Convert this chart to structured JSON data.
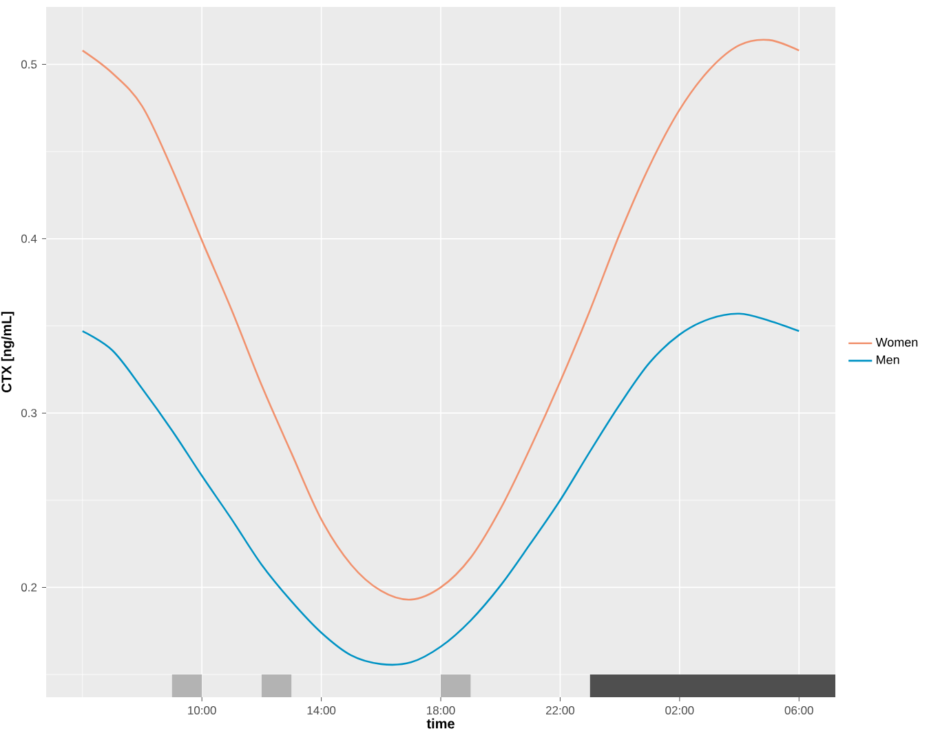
{
  "chart_data": {
    "type": "line",
    "xlabel": "time",
    "ylabel": "CTX  [ng/mL]",
    "x": [
      "2000-01-01T06:00",
      "2000-01-01T07:00",
      "2000-01-01T08:00",
      "2000-01-01T09:00",
      "2000-01-01T10:00",
      "2000-01-01T11:00",
      "2000-01-01T12:00",
      "2000-01-01T13:00",
      "2000-01-01T14:00",
      "2000-01-01T15:00",
      "2000-01-01T16:00",
      "2000-01-01T17:00",
      "2000-01-01T18:00",
      "2000-01-01T19:00",
      "2000-01-01T20:00",
      "2000-01-01T21:00",
      "2000-01-01T22:00",
      "2000-01-01T23:00",
      "2000-01-02T00:00",
      "2000-01-02T01:00",
      "2000-01-02T02:00",
      "2000-01-02T03:00",
      "2000-01-02T04:00",
      "2000-01-02T05:00",
      "2000-01-02T06:00"
    ],
    "series": [
      {
        "name": "Women",
        "color": "#f1926e",
        "values": [
          0.508,
          0.495,
          0.476,
          0.44,
          0.399,
          0.359,
          0.316,
          0.277,
          0.239,
          0.213,
          0.198,
          0.193,
          0.2,
          0.217,
          0.245,
          0.28,
          0.318,
          0.359,
          0.403,
          0.442,
          0.474,
          0.497,
          0.511,
          0.514,
          0.508
        ]
      },
      {
        "name": "Men",
        "color": "#0093c4",
        "values": [
          0.347,
          0.336,
          0.314,
          0.29,
          0.264,
          0.239,
          0.213,
          0.192,
          0.174,
          0.161,
          0.156,
          0.157,
          0.166,
          0.181,
          0.201,
          0.225,
          0.25,
          0.278,
          0.305,
          0.329,
          0.345,
          0.354,
          0.357,
          0.353,
          0.347
        ]
      },
      {
        "type": "area",
        "color": "#b3b3b3",
        "x": [
          "2000-01-01T09:00",
          "2000-01-01T10:00"
        ],
        "values": [
          0.15,
          0.15
        ]
      },
      {
        "type": "area",
        "color": "#b3b3b3",
        "x": [
          "2000-01-01T12:00",
          "2000-01-01T13:00"
        ],
        "values": [
          0.15,
          0.15
        ]
      },
      {
        "type": "area",
        "color": "#b3b3b3",
        "x": [
          "2000-01-01T18:00",
          "2000-01-01T19:00"
        ],
        "values": [
          0.15,
          0.15
        ]
      },
      {
        "type": "area",
        "color": "#4f4f4f",
        "x": [
          "2000-01-01T23:00",
          "2000-01-02T07:13"
        ],
        "values": [
          0.15,
          0.15
        ]
      }
    ],
    "xlim": [
      "2000-01-01T04:47",
      "2000-01-02T07:13"
    ],
    "ylim": [
      0.137,
      0.533
    ],
    "xticks": [
      {
        "value": "2000-01-01T06:00",
        "label": null
      },
      {
        "value": "2000-01-01T10:00",
        "label": "10:00"
      },
      {
        "value": "2000-01-01T14:00",
        "label": "14:00"
      },
      {
        "value": "2000-01-01T18:00",
        "label": "18:00"
      },
      {
        "value": "2000-01-01T22:00",
        "label": "22:00"
      },
      {
        "value": "2000-01-02T02:00",
        "label": "02:00"
      },
      {
        "value": "2000-01-02T06:00",
        "label": "06:00"
      }
    ],
    "yticks": [
      {
        "value": 0.15,
        "label": null
      },
      0.2,
      {
        "value": 0.25,
        "label": null
      },
      0.3,
      {
        "value": 0.35,
        "label": null
      },
      0.4,
      {
        "value": 0.45,
        "label": null
      },
      0.5
    ],
    "grid": true,
    "legend": "right",
    "marker": "none",
    "line_style": "solid"
  }
}
